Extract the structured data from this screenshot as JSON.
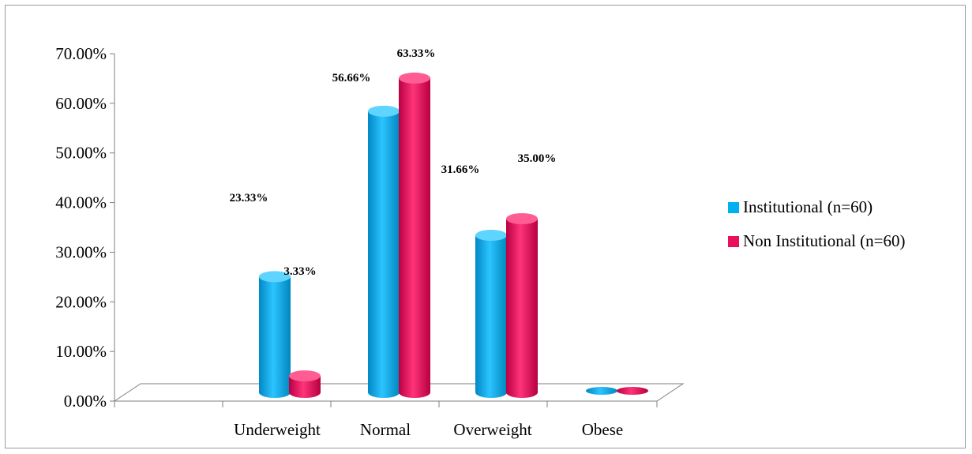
{
  "chart_data": {
    "type": "bar",
    "categories": [
      "Underweight",
      "Normal",
      "Overweight",
      "Obese"
    ],
    "series": [
      {
        "name": "Institutional (n=60)",
        "values": [
          23.33,
          56.66,
          31.66,
          0
        ],
        "color": "#00b0f0"
      },
      {
        "name": "Non Institutional  (n=60)",
        "values": [
          3.33,
          63.33,
          35.0,
          0
        ],
        "color": "#e8105c"
      }
    ],
    "data_labels": [
      [
        "23.33%",
        "56.66%",
        "31.66%",
        ""
      ],
      [
        "3.33%",
        "63.33%",
        "35.00%",
        ""
      ]
    ],
    "y_ticks": [
      "0.00%",
      "10.00%",
      "20.00%",
      "30.00%",
      "40.00%",
      "50.00%",
      "60.00%",
      "70.00%"
    ],
    "ylim": [
      0,
      70
    ],
    "legend_position": "right",
    "style": "3d-cylinder"
  }
}
